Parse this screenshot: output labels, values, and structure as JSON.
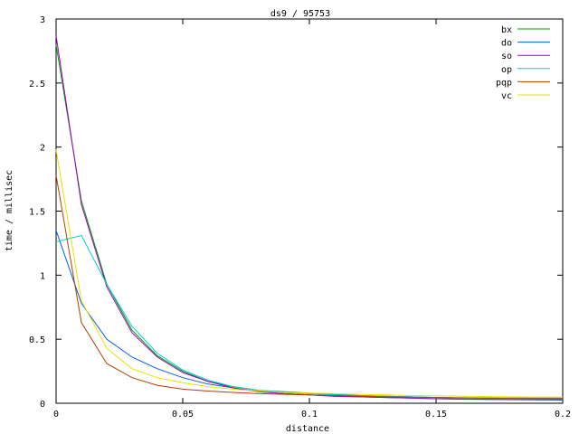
{
  "chart_data": {
    "type": "line",
    "title": "ds9 / 95753",
    "xlabel": "distance",
    "ylabel": "time / millisec",
    "xlim": [
      0,
      0.2
    ],
    "ylim": [
      0,
      3
    ],
    "xticks": [
      0,
      0.05,
      0.1,
      0.15,
      0.2
    ],
    "xtick_labels": [
      "0",
      "0.05",
      "0.1",
      "0.15",
      "0.2"
    ],
    "yticks": [
      0,
      0.5,
      1,
      1.5,
      2,
      2.5,
      3
    ],
    "ytick_labels": [
      "0",
      "0.5",
      "1",
      "1.5",
      "2",
      "2.5",
      "3"
    ],
    "grid": false,
    "legend_position": "top-right",
    "x": [
      0,
      0.01,
      0.02,
      0.03,
      0.04,
      0.05,
      0.06,
      0.07,
      0.08,
      0.09,
      0.1,
      0.11,
      0.12,
      0.13,
      0.14,
      0.15,
      0.16,
      0.17,
      0.18,
      0.19,
      0.2
    ],
    "series": [
      {
        "name": "bx",
        "color": "#00a000",
        "values": [
          2.8,
          1.58,
          0.93,
          0.57,
          0.37,
          0.25,
          0.17,
          0.13,
          0.1,
          0.09,
          0.08,
          0.07,
          0.06,
          0.055,
          0.05,
          0.045,
          0.042,
          0.04,
          0.038,
          0.036,
          0.035
        ]
      },
      {
        "name": "do",
        "color": "#0060e0",
        "values": [
          1.35,
          0.78,
          0.5,
          0.36,
          0.27,
          0.2,
          0.15,
          0.12,
          0.09,
          0.075,
          0.065,
          0.055,
          0.05,
          0.045,
          0.04,
          0.035,
          0.032,
          0.03,
          0.028,
          0.026,
          0.025
        ]
      },
      {
        "name": "so",
        "color": "#a000c0",
        "values": [
          2.87,
          1.55,
          0.91,
          0.55,
          0.36,
          0.24,
          0.17,
          0.12,
          0.09,
          0.075,
          0.065,
          0.055,
          0.05,
          0.045,
          0.04,
          0.035,
          0.033,
          0.031,
          0.03,
          0.03,
          0.03
        ]
      },
      {
        "name": "op",
        "color": "#00d0d0",
        "values": [
          1.26,
          1.31,
          0.93,
          0.6,
          0.39,
          0.26,
          0.18,
          0.13,
          0.1,
          0.085,
          0.075,
          0.065,
          0.06,
          0.055,
          0.05,
          0.045,
          0.042,
          0.04,
          0.038,
          0.036,
          0.035
        ]
      },
      {
        "name": "pqp",
        "color": "#b04000",
        "values": [
          1.78,
          0.63,
          0.31,
          0.2,
          0.14,
          0.11,
          0.095,
          0.085,
          0.075,
          0.07,
          0.065,
          0.06,
          0.055,
          0.05,
          0.048,
          0.045,
          0.043,
          0.04,
          0.04,
          0.04,
          0.04
        ]
      },
      {
        "name": "vc",
        "color": "#e8e000",
        "values": [
          1.98,
          0.8,
          0.43,
          0.27,
          0.2,
          0.16,
          0.13,
          0.11,
          0.095,
          0.085,
          0.08,
          0.075,
          0.07,
          0.065,
          0.06,
          0.058,
          0.055,
          0.052,
          0.05,
          0.048,
          0.047
        ]
      }
    ]
  }
}
